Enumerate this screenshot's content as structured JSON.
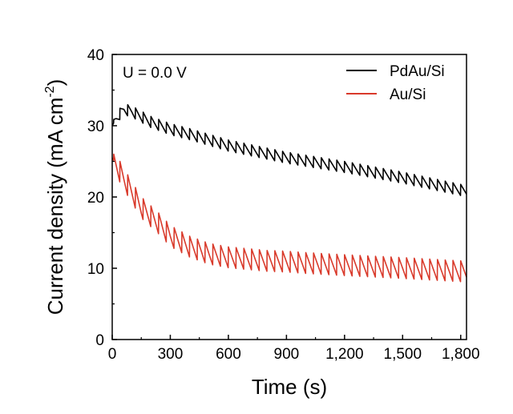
{
  "chart_data": {
    "type": "line",
    "title": "",
    "annotation": "U = 0.0 V",
    "xlabel": "Time (s)",
    "ylabel_main": "Current density (mA cm",
    "ylabel_sup": "-2",
    "ylabel_close": ")",
    "xlim": [
      0,
      1830
    ],
    "ylim": [
      0,
      40
    ],
    "xticks": [
      0,
      300,
      600,
      900,
      1200,
      1500,
      1800
    ],
    "xtick_labels": [
      "0",
      "300",
      "600",
      "900",
      "1,200",
      "1,500",
      "1,800"
    ],
    "yticks": [
      0,
      10,
      20,
      30,
      40
    ],
    "ytick_labels": [
      "0",
      "10",
      "20",
      "30",
      "40"
    ],
    "grid": false,
    "legend_position": "top-right",
    "pulse_period_s": 40,
    "series": [
      {
        "name": "PdAu/Si",
        "color": "#000000",
        "baseline": {
          "x": [
            0,
            20,
            60,
            100,
            200,
            300,
            400,
            600,
            900,
            1200,
            1500,
            1830
          ],
          "y": [
            30.0,
            31.0,
            32.3,
            32.0,
            30.5,
            29.5,
            28.8,
            27.2,
            25.5,
            24.2,
            22.7,
            20.8
          ]
        },
        "pulse_amplitude": 1.6
      },
      {
        "name": "Au/Si",
        "color": "#d93a2b",
        "baseline": {
          "x": [
            0,
            60,
            150,
            250,
            300,
            400,
            500,
            600,
            800,
            900,
            1000,
            1200,
            1500,
            1830
          ],
          "y": [
            25.5,
            22.5,
            18.5,
            16.0,
            14.5,
            13.0,
            12.0,
            11.5,
            11.0,
            10.9,
            10.7,
            10.4,
            10.0,
            9.5
          ]
        },
        "pulse_amplitude": 3.0
      }
    ]
  }
}
